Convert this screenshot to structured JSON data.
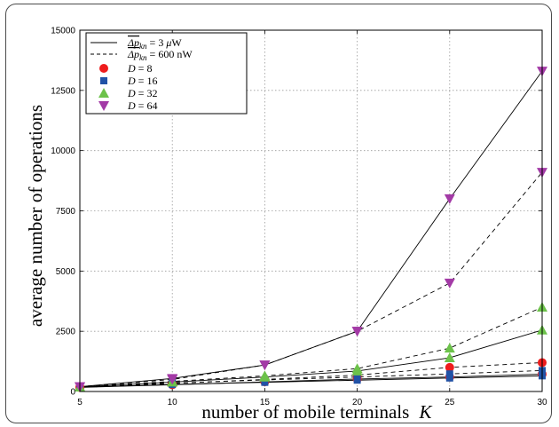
{
  "chart_data": {
    "type": "line",
    "xlabel": "number of mobile terminals",
    "xlabel_symbol": "K",
    "ylabel": "average number of operations",
    "x": [
      5,
      10,
      15,
      20,
      25,
      30
    ],
    "xlim": [
      5,
      30
    ],
    "ylim": [
      0,
      15000
    ],
    "xticks": [
      "5",
      "10",
      "15",
      "20",
      "25",
      "30"
    ],
    "yticks": [
      "0",
      "2500",
      "5000",
      "7500",
      "10000",
      "12500",
      "15000"
    ],
    "ytick_values": [
      0,
      2500,
      5000,
      7500,
      10000,
      12500,
      15000
    ],
    "grid": true,
    "legend_position": "top-left",
    "legend": {
      "lines": [
        {
          "label": "Δp_kn = 3 μW",
          "style": "solid",
          "parts": [
            "Δp",
            "kn",
            " = 3 ",
            "μ",
            "W"
          ]
        },
        {
          "label": "Δp_kn = 600 nW",
          "style": "dashed",
          "parts": [
            "Δp",
            "kn",
            " = 600 ",
            "n",
            "W"
          ]
        }
      ],
      "markers": [
        {
          "label": "D = 8",
          "D": "D",
          "value": " = 8",
          "marker": "circle",
          "color": "#ee1c1c"
        },
        {
          "label": "D = 16",
          "D": "D",
          "value": " = 16",
          "marker": "square",
          "color": "#2152a6"
        },
        {
          "label": "D = 32",
          "D": "D",
          "value": " = 32",
          "marker": "triangle-up",
          "color": "#6cc24a"
        },
        {
          "label": "D = 64",
          "D": "D",
          "value": " = 64",
          "marker": "triangle-down",
          "color": "#a33aa6"
        }
      ]
    },
    "series": [
      {
        "D": 8,
        "power": "3 μW",
        "line": "solid",
        "marker": "circle",
        "color": "#ee1c1c",
        "values": [
          170,
          280,
          400,
          520,
          600,
          720
        ]
      },
      {
        "D": 8,
        "power": "600 nW",
        "line": "dashed",
        "marker": "circle",
        "color": "#ee1c1c",
        "values": [
          170,
          330,
          500,
          680,
          1000,
          1200
        ]
      },
      {
        "D": 16,
        "power": "3 μW",
        "line": "solid",
        "marker": "square",
        "color": "#2152a6",
        "values": [
          180,
          290,
          380,
          470,
          560,
          650
        ]
      },
      {
        "D": 16,
        "power": "600 nW",
        "line": "dashed",
        "marker": "square",
        "color": "#2152a6",
        "values": [
          180,
          350,
          480,
          600,
          730,
          870
        ]
      },
      {
        "D": 32,
        "power": "3 μW",
        "line": "solid",
        "marker": "triangle-up",
        "color": "#6cc24a",
        "values": [
          190,
          390,
          600,
          850,
          1400,
          2550
        ]
      },
      {
        "D": 32,
        "power": "600 nW",
        "line": "dashed",
        "marker": "triangle-up",
        "color": "#6cc24a",
        "values": [
          190,
          420,
          650,
          950,
          1800,
          3500
        ]
      },
      {
        "D": 64,
        "power": "3 μW",
        "line": "solid",
        "marker": "triangle-down",
        "color": "#a33aa6",
        "values": [
          200,
          540,
          1100,
          2500,
          8000,
          13300
        ]
      },
      {
        "D": 64,
        "power": "600 nW",
        "line": "dashed",
        "marker": "triangle-down",
        "color": "#a33aa6",
        "values": [
          200,
          500,
          1100,
          2500,
          4500,
          9100
        ]
      }
    ]
  }
}
